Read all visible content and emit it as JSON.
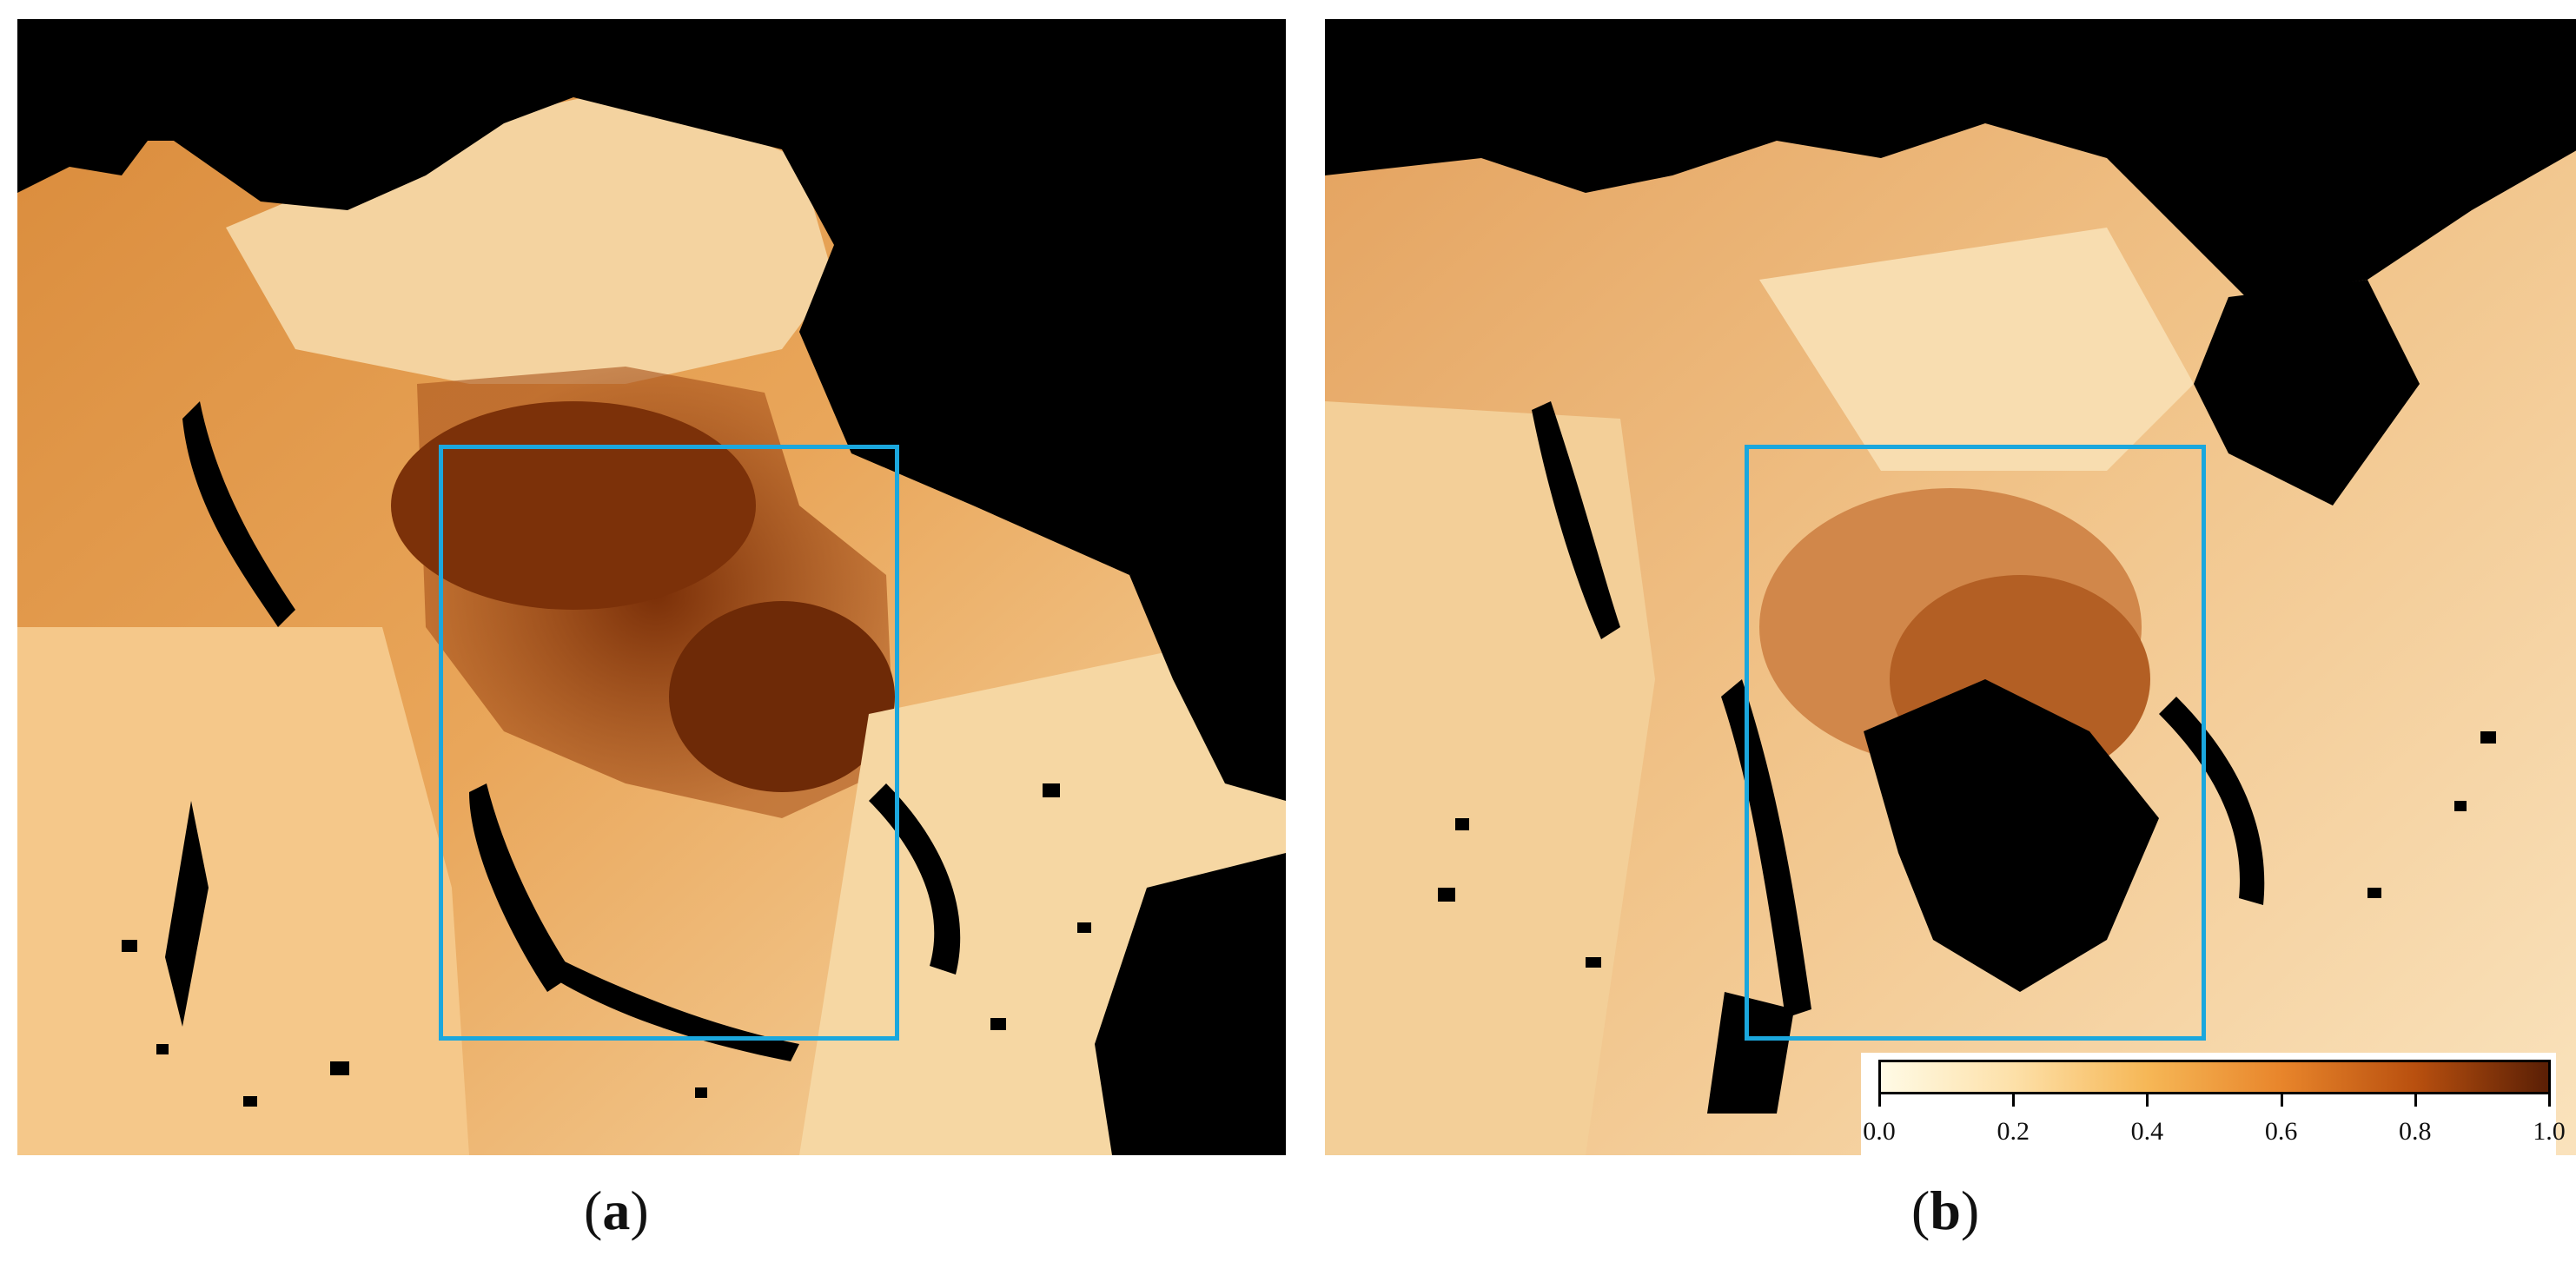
{
  "panels": [
    {
      "id": "a",
      "label_open": "(",
      "label_letter": "a",
      "label_close": ")"
    },
    {
      "id": "b",
      "label_open": "(",
      "label_letter": "b",
      "label_close": ")"
    }
  ],
  "colorbar": {
    "ticks": [
      "0.0",
      "0.2",
      "0.4",
      "0.6",
      "0.8",
      "1.0"
    ],
    "stops": [
      "#fffbe6",
      "#fde0a8",
      "#f6b756",
      "#e8852b",
      "#b9500f",
      "#5a1f05"
    ]
  },
  "colors": {
    "mask": "#000000",
    "roi_box": "#1ba7dd"
  }
}
